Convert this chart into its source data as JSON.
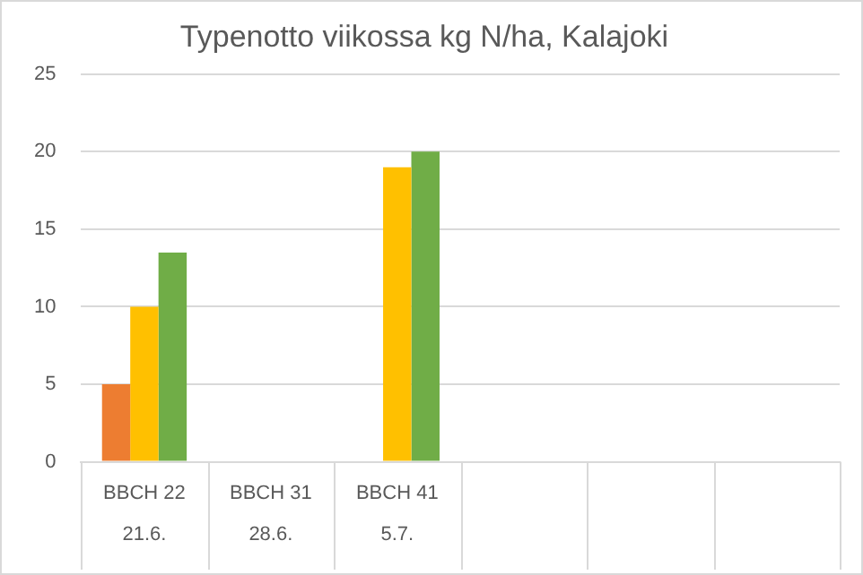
{
  "chart_data": {
    "type": "bar",
    "title": "Typenotto viikossa kg N/ha, Kalajoki",
    "categories": [
      "BBCH 22\n21.6.",
      "BBCH 31\n28.6.",
      "BBCH 41\n5.7.",
      null,
      null,
      null
    ],
    "series": [
      {
        "color": "#ed7d31",
        "values": [
          5,
          null,
          null,
          null,
          null,
          null
        ]
      },
      {
        "color": "#ffc000",
        "values": [
          10,
          null,
          19,
          null,
          null,
          null
        ]
      },
      {
        "color": "#70ad47",
        "values": [
          13.5,
          null,
          20,
          null,
          null,
          null
        ]
      }
    ],
    "ylim": [
      0,
      25
    ],
    "yticks": [
      0,
      5,
      10,
      15,
      20,
      25
    ],
    "grid": "y",
    "legend": false
  }
}
